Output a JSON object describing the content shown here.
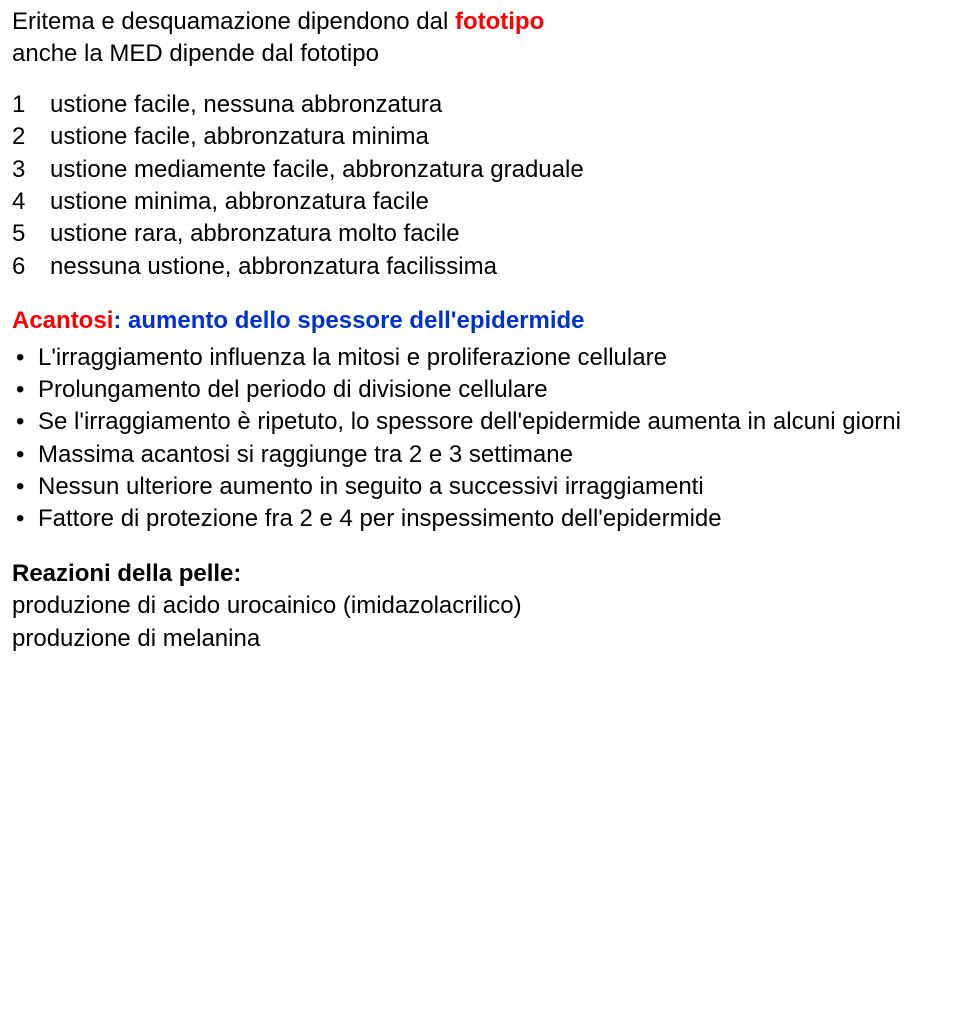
{
  "title": {
    "line1_part1": "Eritema e desquamazione dipendono dal ",
    "line1_highlight": "fototipo",
    "line2": "anche la MED dipende dal fototipo"
  },
  "fototipi": [
    {
      "num": "1",
      "text": "ustione facile, nessuna abbronzatura"
    },
    {
      "num": "2",
      "text": "ustione facile, abbronzatura minima"
    },
    {
      "num": "3",
      "text": "ustione mediamente facile, abbronzatura graduale"
    },
    {
      "num": "4",
      "text": "ustione minima, abbronzatura facile"
    },
    {
      "num": "5",
      "text": "ustione rara, abbronzatura molto facile"
    },
    {
      "num": "6",
      "text": "nessuna ustione, abbronzatura facilissima"
    }
  ],
  "acantosi": {
    "label": "Acantosi",
    "desc": ": aumento dello spessore dell'epidermide",
    "bullets": [
      "L'irraggiamento influenza la mitosi e proliferazione cellulare",
      "Prolungamento del periodo di divisione cellulare",
      "Se l'irraggiamento è ripetuto, lo spessore dell'epidermide aumenta in alcuni giorni",
      "Massima acantosi si raggiunge tra 2 e 3 settimane",
      "Nessun ulteriore aumento in seguito a successivi irraggiamenti",
      "Fattore di protezione fra 2 e 4 per inspessimento dell'epidermide"
    ]
  },
  "reazioni": {
    "title": "Reazioni della pelle:",
    "lines": [
      "produzione di acido urocainico (imidazolacrilico)",
      "produzione di melanina"
    ]
  }
}
